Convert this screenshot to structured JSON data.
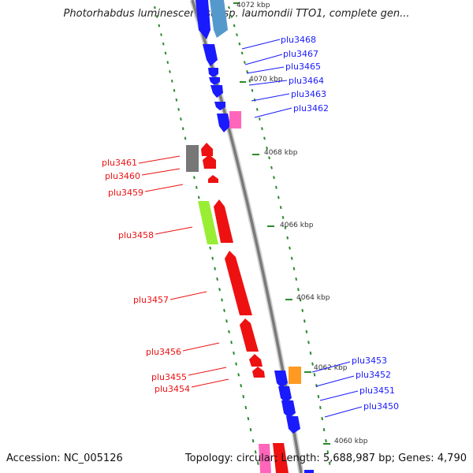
{
  "title": "Photorhabdus luminescens subsp. laumondii TTO1, complete gen...",
  "footer": {
    "accession": "Accession: NC_005126",
    "stats": "Topology: circular; Length: 5,688,987 bp; Genes: 4,790"
  },
  "colors": {
    "forward_strand": "#1a1aff",
    "reverse_strand": "#ee1111",
    "backbone": "#8c8c8c",
    "tick": "#2a8a2a",
    "pink_gene": "#ff66bb",
    "gray_gene": "#777777",
    "green_gene": "#99ee33",
    "orange_gene": "#ff9922",
    "steel_gene": "#5599cc"
  },
  "ticks": [
    "4072 kbp",
    "4070 kbp",
    "4068 kbp",
    "4066 kbp",
    "4064 kbp",
    "4062 kbp",
    "4060 kbp"
  ],
  "genes_forward": [
    "plu3468",
    "plu3467",
    "plu3465",
    "plu3464",
    "plu3463",
    "plu3462",
    "plu3453",
    "plu3452",
    "plu3451",
    "plu3450"
  ],
  "genes_reverse": [
    "plu3461",
    "plu3460",
    "plu3459",
    "plu3458",
    "plu3457",
    "plu3456",
    "plu3455",
    "plu3454"
  ]
}
